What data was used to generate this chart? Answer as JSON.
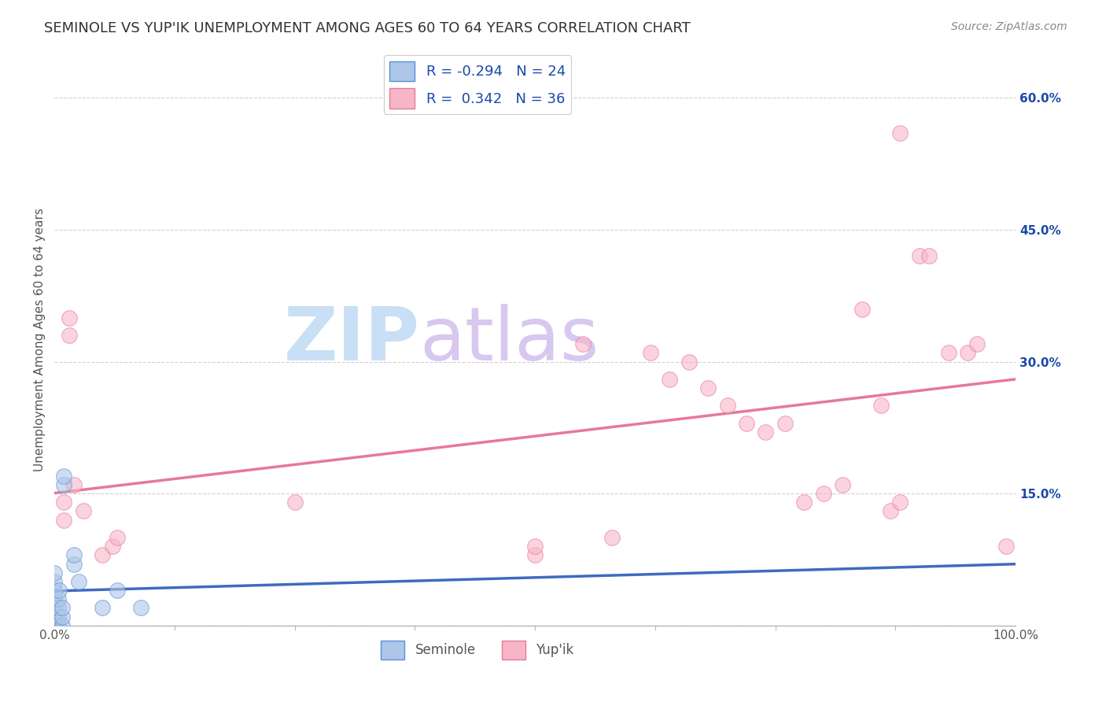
{
  "title": "SEMINOLE VS YUP'IK UNEMPLOYMENT AMONG AGES 60 TO 64 YEARS CORRELATION CHART",
  "source": "Source: ZipAtlas.com",
  "ylabel": "Unemployment Among Ages 60 to 64 years",
  "seminole_label": "Seminole",
  "yupik_label": "Yup'ik",
  "seminole_R": "-0.294",
  "seminole_N": "24",
  "yupik_R": "0.342",
  "yupik_N": "36",
  "seminole_color": "#aec6e8",
  "yupik_color": "#f7b6c8",
  "seminole_edge_color": "#5b8fd4",
  "yupik_edge_color": "#e8789a",
  "seminole_line_color": "#3f6bbf",
  "yupik_line_color": "#e8789a",
  "legend_R_color": "#1a4aaa",
  "background_color": "#ffffff",
  "grid_color": "#cccccc",
  "watermark_zip_color": "#c8dff5",
  "watermark_atlas_color": "#d8c8f0",
  "seminole_points": [
    [
      0.0,
      0.0
    ],
    [
      0.0,
      0.0
    ],
    [
      0.0,
      0.01
    ],
    [
      0.0,
      0.02
    ],
    [
      0.0,
      0.03
    ],
    [
      0.0,
      0.04
    ],
    [
      0.0,
      0.05
    ],
    [
      0.0,
      0.06
    ],
    [
      0.004,
      0.0
    ],
    [
      0.004,
      0.01
    ],
    [
      0.004,
      0.02
    ],
    [
      0.004,
      0.03
    ],
    [
      0.005,
      0.04
    ],
    [
      0.008,
      0.0
    ],
    [
      0.008,
      0.01
    ],
    [
      0.008,
      0.02
    ],
    [
      0.01,
      0.16
    ],
    [
      0.01,
      0.17
    ],
    [
      0.02,
      0.07
    ],
    [
      0.02,
      0.08
    ],
    [
      0.025,
      0.05
    ],
    [
      0.05,
      0.02
    ],
    [
      0.065,
      0.04
    ],
    [
      0.09,
      0.02
    ]
  ],
  "yupik_points": [
    [
      0.01,
      0.12
    ],
    [
      0.01,
      0.14
    ],
    [
      0.015,
      0.33
    ],
    [
      0.015,
      0.35
    ],
    [
      0.02,
      0.16
    ],
    [
      0.03,
      0.13
    ],
    [
      0.05,
      0.08
    ],
    [
      0.06,
      0.09
    ],
    [
      0.065,
      0.1
    ],
    [
      0.25,
      0.14
    ],
    [
      0.5,
      0.08
    ],
    [
      0.5,
      0.09
    ],
    [
      0.55,
      0.32
    ],
    [
      0.58,
      0.1
    ],
    [
      0.62,
      0.31
    ],
    [
      0.64,
      0.28
    ],
    [
      0.66,
      0.3
    ],
    [
      0.68,
      0.27
    ],
    [
      0.7,
      0.25
    ],
    [
      0.72,
      0.23
    ],
    [
      0.74,
      0.22
    ],
    [
      0.76,
      0.23
    ],
    [
      0.78,
      0.14
    ],
    [
      0.8,
      0.15
    ],
    [
      0.82,
      0.16
    ],
    [
      0.84,
      0.36
    ],
    [
      0.86,
      0.25
    ],
    [
      0.87,
      0.13
    ],
    [
      0.88,
      0.14
    ],
    [
      0.88,
      0.56
    ],
    [
      0.9,
      0.42
    ],
    [
      0.91,
      0.42
    ],
    [
      0.93,
      0.31
    ],
    [
      0.95,
      0.31
    ],
    [
      0.96,
      0.32
    ],
    [
      0.99,
      0.09
    ]
  ],
  "xlim": [
    0.0,
    1.0
  ],
  "ylim": [
    0.0,
    0.65
  ],
  "yticks_right": [
    0.15,
    0.3,
    0.45,
    0.6
  ],
  "xticks": [
    0.0,
    1.0
  ],
  "yticks_left": [
    0.0,
    0.15,
    0.3,
    0.45,
    0.6
  ],
  "marker_size": 200,
  "marker_alpha": 0.6
}
